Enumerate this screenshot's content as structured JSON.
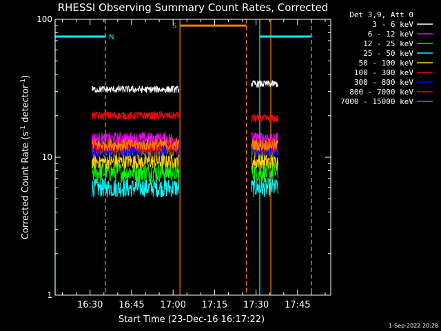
{
  "chart_data": {
    "type": "line",
    "title": "RHESSI Observing Summary Count Rates, Corrected",
    "xlabel": "Start Time (23-Dec-16 16:17:22)",
    "ylabel_main": "Corrected Count Rate (s",
    "ylabel_sup1": "-1",
    "ylabel_mid": " detector",
    "ylabel_sup2": "-1",
    "ylabel_end": ")",
    "yscale": "log",
    "ylim": [
      1,
      100
    ],
    "xlim": [
      "16:17:22",
      "17:57:00"
    ],
    "x_ticks": [
      "16:30",
      "16:45",
      "17:00",
      "17:15",
      "17:30",
      "17:45"
    ],
    "y_ticks": [
      "1",
      "10",
      "100"
    ],
    "legend_title": "Det 3,9, Att 0",
    "legend_position": "right",
    "footer": "1-Sep-2022 20:28",
    "series": [
      {
        "name": "3 - 6 keV",
        "color": "#ffffff",
        "level": 31,
        "level_late": 34,
        "jitter": 0.06,
        "segments": [
          "16:30:40-17:02:10",
          "17:28:20-17:38:00"
        ]
      },
      {
        "name": "6 - 12 keV",
        "color": "#ff00ff",
        "level": 13.5,
        "jitter": 0.12,
        "segments": [
          "16:30:40-17:02:10",
          "17:28:20-17:38:00"
        ]
      },
      {
        "name": "12 - 25 keV",
        "color": "#00ff00",
        "level": 7.8,
        "jitter": 0.17,
        "segments": [
          "16:30:40-17:02:10",
          "17:28:20-17:38:00"
        ]
      },
      {
        "name": "25 - 50 keV",
        "color": "#00ffff",
        "level": 6.0,
        "jitter": 0.16,
        "segments": [
          "16:30:40-17:02:10",
          "17:28:20-17:38:00"
        ]
      },
      {
        "name": "50 - 100 keV",
        "color": "#ffd700",
        "level": 9.3,
        "jitter": 0.12,
        "segments": [
          "16:30:40-17:02:10",
          "17:28:20-17:38:00"
        ]
      },
      {
        "name": "100 - 300 keV",
        "color": "#ff0000",
        "level": 20,
        "level_late": 19,
        "jitter": 0.07,
        "segments": [
          "16:30:40-17:02:10",
          "17:28:20-17:38:00"
        ]
      },
      {
        "name": "300 - 800 keV",
        "color": "#0000ff",
        "level": 11.5,
        "jitter": 0.14,
        "segments": [
          "16:30:40-17:02:10",
          "17:28:20-17:38:00"
        ]
      },
      {
        "name": "800 - 7000 keV",
        "color": "#ff0000",
        "level": 12,
        "jitter": 0.12,
        "segments": [
          "16:30:40-17:02:10",
          "17:28:20-17:38:00"
        ]
      },
      {
        "name": "7000 - 15000 keV",
        "color": "#808000",
        "level": 11,
        "jitter": 0.12,
        "segments": [
          "16:30:40-17:02:10",
          "17:28:20-17:38:00"
        ]
      }
    ],
    "orange_overlay": {
      "color": "#ff8000",
      "level": 12.3,
      "jitter": 0.1
    },
    "annotations": [
      {
        "label": "N",
        "color": "#00ffff",
        "start": "16:17:22",
        "end": "16:35:30",
        "level": 75,
        "kind": "night"
      },
      {
        "label": "S",
        "color": "#ff8000",
        "start": "17:02:30",
        "end": "17:26:30",
        "level": 90,
        "kind": "saa"
      },
      {
        "label": "",
        "color": "#00ffff",
        "start": "17:31:20",
        "end": "17:50:00",
        "level": 75,
        "kind": "night"
      }
    ],
    "vertical_markers": [
      {
        "time": "16:17:22",
        "color": "#00ffff",
        "style": "solid"
      },
      {
        "time": "16:35:30",
        "color": "#00ffff",
        "style": "dashed"
      },
      {
        "time": "17:02:30",
        "color": "#ff8000",
        "style": "solid"
      },
      {
        "time": "17:26:30",
        "color": "#ff8000",
        "style": "dashed"
      },
      {
        "time": "17:31:20",
        "color": "#00ffff",
        "style": "solid"
      },
      {
        "time": "17:35:20",
        "color": "#ff8000",
        "style": "solid"
      },
      {
        "time": "17:50:00",
        "color": "#00ffff",
        "style": "dashed"
      }
    ]
  }
}
